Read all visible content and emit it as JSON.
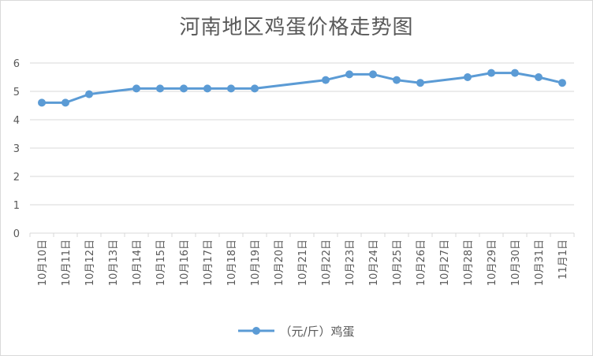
{
  "chart_data": {
    "type": "line",
    "title": "河南地区鸡蛋价格走势图",
    "categories": [
      "10月10日",
      "10月11日",
      "10月12日",
      "10月13日",
      "10月14日",
      "10月15日",
      "10月16日",
      "10月17日",
      "10月18日",
      "10月19日",
      "10月20日",
      "10月21日",
      "10月22日",
      "10月23日",
      "10月24日",
      "10月25日",
      "10月26日",
      "10月27日",
      "10月28日",
      "10月29日",
      "10月30日",
      "10月31日",
      "11月1日"
    ],
    "series": [
      {
        "name": "（元/斤）鸡蛋",
        "values": [
          4.6,
          4.6,
          4.9,
          null,
          5.1,
          5.1,
          5.1,
          5.1,
          5.1,
          5.1,
          null,
          null,
          5.4,
          5.6,
          5.6,
          5.4,
          5.3,
          null,
          5.5,
          5.65,
          5.65,
          5.5,
          5.3
        ]
      }
    ],
    "ylim": [
      0,
      6
    ],
    "yticks": [
      "0",
      "1",
      "2",
      "3",
      "4",
      "5",
      "6"
    ],
    "xlabel": "",
    "ylabel": "",
    "grid": true,
    "legend": "bottom",
    "colors": {
      "series": "#5B9BD5",
      "grid": "#d9d9d9",
      "text": "#595959"
    }
  }
}
